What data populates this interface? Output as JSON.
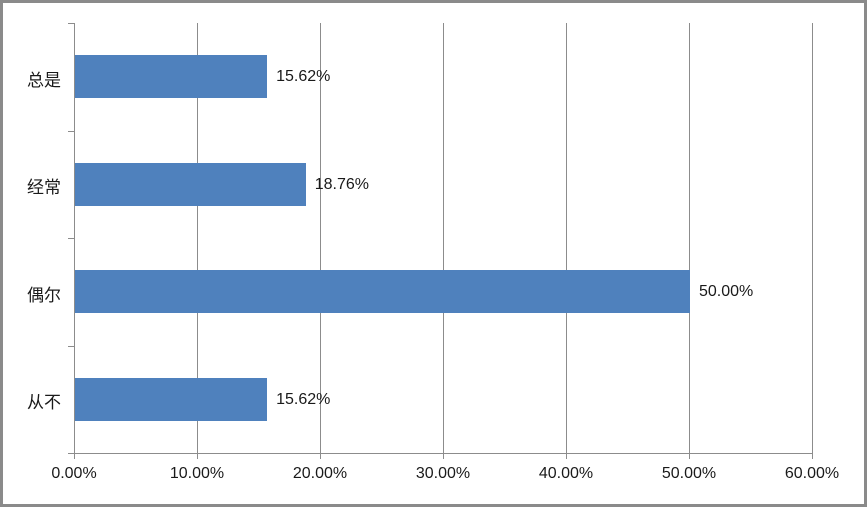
{
  "chart_data": {
    "type": "bar",
    "orientation": "horizontal",
    "title": "",
    "xlabel": "",
    "ylabel": "",
    "categories": [
      "总是",
      "经常",
      "偶尔",
      "从不"
    ],
    "values": [
      15.62,
      18.76,
      50.0,
      15.62
    ],
    "value_labels": [
      "15.62%",
      "18.76%",
      "50.00%",
      "15.62%"
    ],
    "x_ticks": [
      0,
      10,
      20,
      30,
      40,
      50,
      60
    ],
    "x_tick_labels": [
      "0.00%",
      "10.00%",
      "20.00%",
      "30.00%",
      "40.00%",
      "50.00%",
      "60.00%"
    ],
    "xlim": [
      0,
      60
    ],
    "grid": "vertical",
    "legend": "none",
    "data_labels": "outside-end"
  },
  "colors": {
    "bar": "#4F81BD",
    "gridline": "#8C8C8C",
    "axis": "#8C8C8C",
    "text": "#1A1A1A",
    "frame_border": "#8A8A8A",
    "background": "#FFFFFF"
  }
}
